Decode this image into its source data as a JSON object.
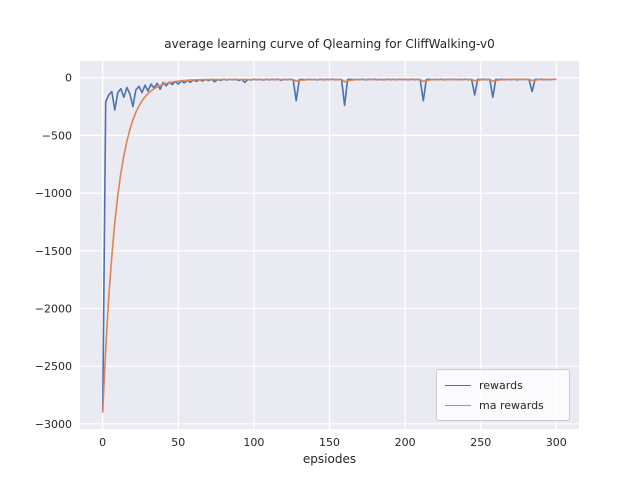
{
  "figure": {
    "title": "average learning curve of Qlearning for CliffWalking-v0",
    "xlabel": "epsiodes"
  },
  "chart_data": {
    "type": "line",
    "title": "average learning curve of Qlearning for CliffWalking-v0",
    "xlabel": "epsiodes",
    "ylabel": "",
    "grid": true,
    "background": "#eaeaf2",
    "grid_color": "#ffffff",
    "tick_color": "#262626",
    "legend_position": "lower right",
    "xlim": [
      -15,
      315
    ],
    "ylim": [
      -3045,
      145
    ],
    "xticks": [
      0,
      50,
      100,
      150,
      200,
      250,
      300
    ],
    "yticks": [
      0,
      -500,
      -1000,
      -1500,
      -2000,
      -2500,
      -3000
    ],
    "x": [
      0,
      2,
      4,
      6,
      8,
      10,
      12,
      14,
      16,
      18,
      20,
      22,
      24,
      26,
      28,
      30,
      32,
      34,
      36,
      38,
      40,
      42,
      44,
      46,
      48,
      50,
      52,
      54,
      56,
      58,
      60,
      62,
      64,
      66,
      68,
      70,
      72,
      74,
      76,
      78,
      80,
      82,
      84,
      86,
      88,
      90,
      92,
      94,
      96,
      98,
      100,
      102,
      104,
      106,
      108,
      110,
      112,
      114,
      116,
      118,
      120,
      122,
      124,
      126,
      128,
      130,
      132,
      134,
      136,
      138,
      140,
      142,
      144,
      146,
      148,
      150,
      152,
      154,
      156,
      158,
      160,
      162,
      164,
      166,
      168,
      170,
      172,
      174,
      176,
      178,
      180,
      182,
      184,
      186,
      188,
      190,
      192,
      194,
      196,
      198,
      200,
      202,
      204,
      206,
      208,
      210,
      212,
      214,
      216,
      218,
      220,
      222,
      224,
      226,
      228,
      230,
      232,
      234,
      236,
      238,
      240,
      242,
      244,
      246,
      248,
      250,
      252,
      254,
      256,
      258,
      260,
      262,
      264,
      266,
      268,
      270,
      272,
      274,
      276,
      278,
      280,
      282,
      284,
      286,
      288,
      290,
      292,
      294,
      296,
      298,
      300
    ],
    "series": [
      {
        "name": "rewards",
        "color": "#4c72b0",
        "values": [
          -2900,
          -210,
          -150,
          -120,
          -280,
          -130,
          -95,
          -170,
          -85,
          -140,
          -250,
          -105,
          -75,
          -130,
          -65,
          -115,
          -55,
          -90,
          -48,
          -100,
          -42,
          -70,
          -38,
          -60,
          -33,
          -55,
          -28,
          -45,
          -24,
          -40,
          -20,
          -32,
          -17,
          -28,
          -15,
          -25,
          -14,
          -35,
          -15,
          -22,
          -13,
          -20,
          -14,
          -18,
          -13,
          -24,
          -14,
          -40,
          -15,
          -20,
          -13,
          -17,
          -14,
          -20,
          -13,
          -18,
          -14,
          -16,
          -13,
          -22,
          -14,
          -17,
          -13,
          -19,
          -200,
          -16,
          -14,
          -18,
          -13,
          -16,
          -14,
          -19,
          -13,
          -17,
          -14,
          -16,
          -13,
          -18,
          -14,
          -16,
          -240,
          -15,
          -13,
          -17,
          -14,
          -16,
          -13,
          -18,
          -14,
          -16,
          -13,
          -17,
          -14,
          -19,
          -13,
          -16,
          -14,
          -17,
          -13,
          -16,
          -14,
          -18,
          -13,
          -16,
          -14,
          -17,
          -200,
          -15,
          -13,
          -17,
          -14,
          -16,
          -13,
          -18,
          -14,
          -16,
          -13,
          -17,
          -14,
          -16,
          -13,
          -18,
          -14,
          -150,
          -14,
          -16,
          -13,
          -17,
          -14,
          -170,
          -14,
          -16,
          -13,
          -17,
          -14,
          -16,
          -13,
          -18,
          -14,
          -16,
          -13,
          -17,
          -120,
          -14,
          -16,
          -13,
          -17,
          -14,
          -16,
          -13,
          -14
        ]
      },
      {
        "name": "ma rewards",
        "color": "#dd8452",
        "values": [
          -2900,
          -2352,
          -1908,
          -1548,
          -1257,
          -1021,
          -830,
          -675,
          -550,
          -448,
          -366,
          -299,
          -245,
          -201,
          -166,
          -137,
          -114,
          -95,
          -80,
          -68,
          -58,
          -50,
          -43,
          -38,
          -33,
          -30,
          -27,
          -25,
          -23,
          -21,
          -20,
          -19,
          -18,
          -17.5,
          -17,
          -16.5,
          -16,
          -16,
          -15.5,
          -15.5,
          -15,
          -15,
          -15,
          -15,
          -15,
          -15,
          -15,
          -15,
          -15,
          -15,
          -15,
          -15,
          -15,
          -15,
          -15,
          -15,
          -15,
          -15,
          -15,
          -15,
          -15,
          -15,
          -15,
          -15,
          -30,
          -25,
          -21,
          -18,
          -16,
          -15,
          -15,
          -15,
          -15,
          -15,
          -15,
          -15,
          -15,
          -15,
          -15,
          -15,
          -35,
          -27,
          -22,
          -18,
          -16,
          -15,
          -15,
          -15,
          -15,
          -15,
          -15,
          -15,
          -15,
          -15,
          -15,
          -15,
          -15,
          -15,
          -15,
          -15,
          -15,
          -15,
          -15,
          -15,
          -15,
          -15,
          -32,
          -25,
          -20,
          -17,
          -16,
          -15,
          -15,
          -15,
          -15,
          -15,
          -15,
          -15,
          -15,
          -15,
          -15,
          -15,
          -15,
          -27,
          -22,
          -18,
          -16,
          -15,
          -15,
          -29,
          -23,
          -19,
          -16,
          -15,
          -14,
          -14,
          -14,
          -14,
          -14,
          -14,
          -14,
          -14,
          -24,
          -20,
          -17,
          -15,
          -14,
          -14,
          -14,
          -14,
          -14
        ]
      }
    ]
  }
}
